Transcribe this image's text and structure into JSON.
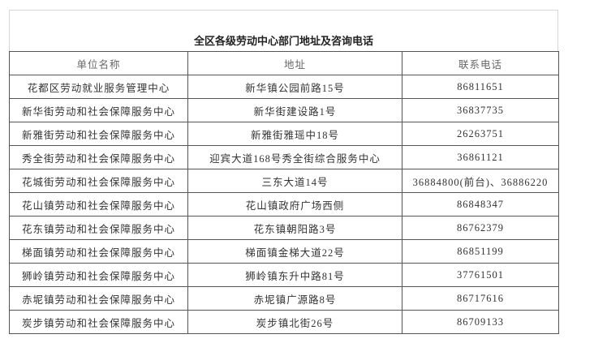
{
  "header": {
    "title": "全区各级劳动中心部门地址及咨询电话"
  },
  "table": {
    "columns": [
      "单位名称",
      "地址",
      "联系电话"
    ],
    "rows": [
      [
        "花都区劳动就业服务管理中心",
        "新华镇公园前路15号",
        "86811651"
      ],
      [
        "新华街劳动和社会保障服务中心",
        "新华街建设路1号",
        "36837735"
      ],
      [
        "新雅街劳动和社会保障服务中心",
        "新雅街雅瑶中18号",
        "26263751"
      ],
      [
        "秀全街劳动和社会保障服务中心",
        "迎宾大道168号秀全街综合服务中心",
        "36861121"
      ],
      [
        "花城街劳动和社会保障服务中心",
        "三东大道14号",
        "36884800(前台)、36886220"
      ],
      [
        "花山镇劳动和社会保障服务中心",
        "花山镇政府广场西侧",
        "86848347"
      ],
      [
        "花东镇劳动和社会保障服务中心",
        "花东镇朝阳路3号",
        "86762379"
      ],
      [
        "梯面镇劳动和社会保障服务中心",
        "梯面镇金梯大道22号",
        "86851199"
      ],
      [
        "狮岭镇劳动和社会保障服务中心",
        "狮岭镇东升中路81号",
        "37761501"
      ],
      [
        "赤坭镇劳动和社会保障服务中心",
        "赤坭镇广源路8号",
        "86717616"
      ],
      [
        "炭步镇劳动和社会保障服务中心",
        "炭步镇北街26号",
        "86709133"
      ]
    ]
  }
}
